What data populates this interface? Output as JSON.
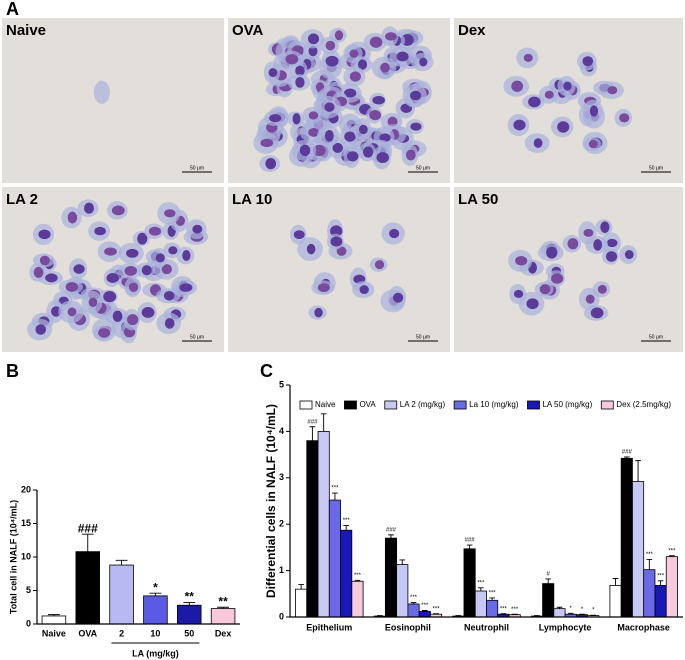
{
  "panel_labels": [
    "A",
    "B",
    "C"
  ],
  "images": [
    {
      "label": "Naive",
      "scale": "50 μm"
    },
    {
      "label": "OVA",
      "scale": "50 μm"
    },
    {
      "label": "Dex",
      "scale": "50 μm"
    },
    {
      "label": "LA 2",
      "scale": "50 μm"
    },
    {
      "label": "LA 10",
      "scale": "50 μm"
    },
    {
      "label": "LA 50",
      "scale": "50 μm"
    }
  ],
  "chart_data": [
    {
      "type": "bar",
      "ylabel": "Total cell in NALF (10⁴/mL)",
      "xlabel": "LA (mg/kg)",
      "categories": [
        "Naive",
        "OVA",
        "2",
        "10",
        "50",
        "Dex"
      ],
      "values": [
        1.2,
        10.8,
        8.8,
        4.2,
        2.8,
        2.3
      ],
      "errors": [
        0.2,
        2.6,
        0.7,
        0.4,
        0.4,
        0.2
      ],
      "colors": [
        "#ffffff",
        "#000000",
        "#b8b8f2",
        "#5a5ae2",
        "#1a1aa6",
        "#f8c8da"
      ],
      "annotations": [
        null,
        "###",
        null,
        "*",
        "**",
        "**"
      ],
      "ylim": [
        0,
        20
      ],
      "yticks": [
        0,
        5,
        10,
        15,
        20
      ]
    },
    {
      "type": "grouped_bar",
      "ylabel": "Differential cells in NALF (10⁴/mL)",
      "categories": [
        "Epithelium",
        "Eosinophil",
        "Neutrophil",
        "Lymphocyte",
        "Macrophase"
      ],
      "series": [
        {
          "name": "Naive",
          "color": "#ffffff",
          "values": [
            0.6,
            0.02,
            0.02,
            0.02,
            0.68
          ],
          "errors": [
            0.1,
            0.01,
            0.01,
            0.01,
            0.15
          ],
          "annotations": [
            null,
            null,
            null,
            null,
            null
          ]
        },
        {
          "name": "OVA",
          "color": "#000000",
          "values": [
            3.8,
            1.7,
            1.47,
            0.72,
            3.42
          ],
          "errors": [
            0.3,
            0.07,
            0.08,
            0.1,
            0.03
          ],
          "annotations": [
            "###",
            "###",
            "###",
            "#",
            "###"
          ]
        },
        {
          "name": "LA 2 (mg/kg)",
          "color": "#c8c8f4",
          "values": [
            4.0,
            1.13,
            0.56,
            0.18,
            2.92
          ],
          "errors": [
            0.38,
            0.1,
            0.07,
            0.03,
            0.45
          ],
          "annotations": [
            null,
            null,
            "***",
            null,
            null
          ]
        },
        {
          "name": "La 10 (mg/kg)",
          "color": "#6a6ae6",
          "values": [
            2.52,
            0.28,
            0.36,
            0.06,
            1.02
          ],
          "errors": [
            0.15,
            0.03,
            0.05,
            0.02,
            0.22
          ],
          "annotations": [
            "***",
            "***",
            "***",
            "*",
            "***"
          ]
        },
        {
          "name": "LA 50 (mg/kg)",
          "color": "#1818b8",
          "values": [
            1.87,
            0.12,
            0.06,
            0.05,
            0.68
          ],
          "errors": [
            0.1,
            0.02,
            0.01,
            0.01,
            0.1
          ],
          "annotations": [
            "***",
            "***",
            "***",
            "*",
            "***"
          ]
        },
        {
          "name": "Dex (2.5mg/kg)",
          "color": "#f8c8dc",
          "values": [
            0.77,
            0.06,
            0.05,
            0.03,
            1.3
          ],
          "errors": [
            0.02,
            0.01,
            0.01,
            0.01,
            0.02
          ],
          "annotations": [
            "***",
            "***",
            "***",
            "*",
            "***"
          ]
        }
      ],
      "legend": "top-left",
      "ylim": [
        0,
        5
      ],
      "yticks": [
        0,
        1,
        2,
        3,
        4,
        5
      ]
    }
  ]
}
